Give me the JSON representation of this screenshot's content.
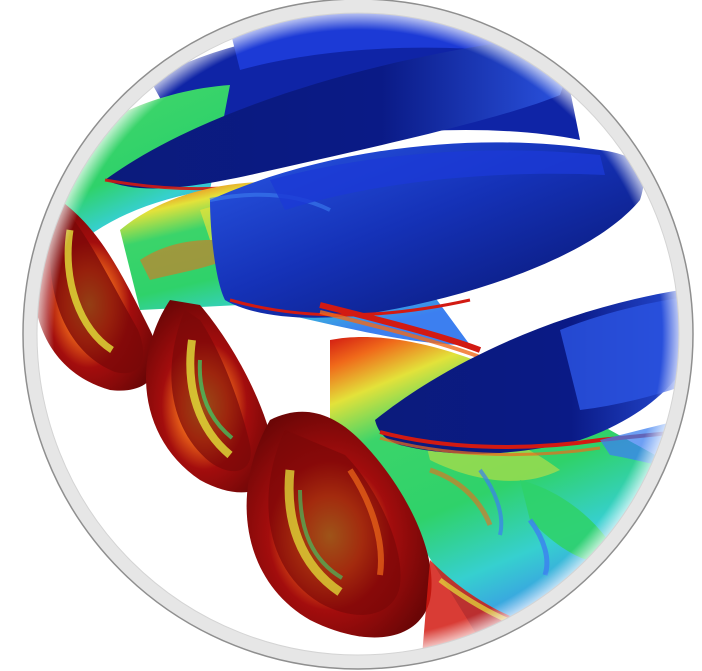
{
  "image": {
    "kind": "cfd-surface-contour",
    "subject": "screw-flights",
    "palette": {
      "background": "#ffffff",
      "ring_outer": "#8f8f8f",
      "ring_inner": "#e6e6e6",
      "deep_blue": "#0a1a86",
      "blue": "#1c3ad6",
      "light_blue": "#3c7ff0",
      "cyan": "#36d0cf",
      "green": "#3bd46a",
      "yellow": "#e3e23a",
      "orange": "#f06a1a",
      "red": "#d21a12",
      "dark_red": "#7a0808"
    }
  }
}
